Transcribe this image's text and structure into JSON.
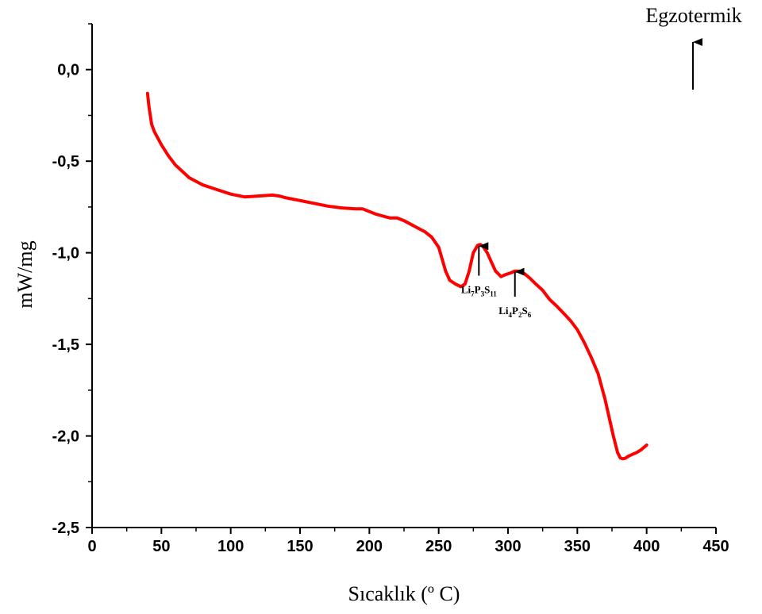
{
  "chart_data": {
    "type": "line",
    "title": "",
    "xlabel": "Sıcaklık (º C)",
    "ylabel": "mW/mg",
    "xlim": [
      0,
      450
    ],
    "ylim": [
      -2.5,
      0.25
    ],
    "x_ticks": [
      0,
      50,
      100,
      150,
      200,
      250,
      300,
      350,
      400,
      450
    ],
    "x_tick_labels": [
      "0",
      "50",
      "100",
      "150",
      "200",
      "250",
      "300",
      "350",
      "400",
      "450"
    ],
    "y_ticks": [
      0,
      -0.5,
      -1.0,
      -1.5,
      -2.0,
      -2.5
    ],
    "y_tick_labels": [
      "0,0",
      "-0,5",
      "-1,0",
      "-1,5",
      "-2,0",
      "-2,5"
    ],
    "grid": false,
    "line_color": "#ff0000",
    "series": [
      {
        "x": [
          40,
          41,
          43,
          45,
          50,
          55,
          60,
          70,
          80,
          90,
          100,
          110,
          120,
          130,
          135,
          140,
          150,
          160,
          170,
          180,
          190,
          195,
          200,
          205,
          210,
          215,
          220,
          225,
          230,
          235,
          240,
          245,
          250,
          255,
          258,
          262,
          266,
          269,
          272,
          275,
          278,
          280,
          282,
          285,
          288,
          291,
          295,
          298,
          302,
          305,
          308,
          312,
          316,
          320,
          325,
          330,
          335,
          340,
          345,
          350,
          355,
          360,
          365,
          370,
          373,
          376,
          379,
          381,
          383,
          385,
          387,
          390,
          393,
          396,
          400
        ],
        "y": [
          -0.13,
          -0.2,
          -0.3,
          -0.34,
          -0.41,
          -0.47,
          -0.52,
          -0.59,
          -0.63,
          -0.655,
          -0.68,
          -0.695,
          -0.69,
          -0.685,
          -0.69,
          -0.7,
          -0.715,
          -0.73,
          -0.745,
          -0.755,
          -0.76,
          -0.76,
          -0.775,
          -0.79,
          -0.8,
          -0.81,
          -0.81,
          -0.825,
          -0.845,
          -0.865,
          -0.885,
          -0.915,
          -0.97,
          -1.1,
          -1.15,
          -1.17,
          -1.185,
          -1.17,
          -1.1,
          -1.0,
          -0.96,
          -0.955,
          -0.965,
          -1.0,
          -1.05,
          -1.1,
          -1.13,
          -1.12,
          -1.11,
          -1.1,
          -1.1,
          -1.115,
          -1.14,
          -1.17,
          -1.205,
          -1.255,
          -1.29,
          -1.33,
          -1.37,
          -1.42,
          -1.49,
          -1.57,
          -1.66,
          -1.8,
          -1.9,
          -2.0,
          -2.09,
          -2.12,
          -2.125,
          -2.12,
          -2.11,
          -2.1,
          -2.09,
          -2.075,
          -2.05
        ]
      }
    ],
    "annotations": [
      {
        "parts": [
          [
            "Li",
            false
          ],
          [
            "7",
            true
          ],
          [
            "P",
            false
          ],
          [
            "3",
            true
          ],
          [
            "S",
            false
          ],
          [
            "11",
            true
          ]
        ],
        "x": 279,
        "y": -0.955,
        "arrow_from_y": -1.125
      },
      {
        "parts": [
          [
            "Li",
            false
          ],
          [
            "4",
            true
          ],
          [
            "P",
            false
          ],
          [
            "2",
            true
          ],
          [
            "S",
            false
          ],
          [
            "6",
            true
          ]
        ],
        "x": 305,
        "y": -1.095,
        "arrow_from_y": -1.24
      }
    ],
    "corner_label": "Egzotermik"
  }
}
